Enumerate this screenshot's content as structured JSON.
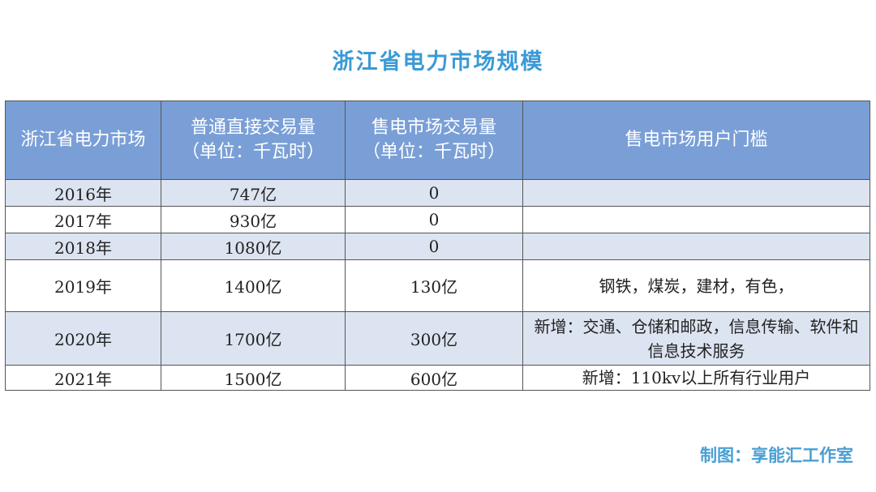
{
  "title": "浙江省电力市场规模",
  "table": {
    "headers": [
      {
        "line1": "浙江省电力市场",
        "line2": ""
      },
      {
        "line1": "普通直接交易量",
        "line2": "（单位：千瓦时）"
      },
      {
        "line1": "售电市场交易量",
        "line2": "（单位：千瓦时）"
      },
      {
        "line1": "售电市场用户门槛",
        "line2": ""
      }
    ],
    "rows": [
      [
        "2016年",
        "747亿",
        "0",
        ""
      ],
      [
        "2017年",
        "930亿",
        "0",
        ""
      ],
      [
        "2018年",
        "1080亿",
        "0",
        ""
      ],
      [
        "2019年",
        "1400亿",
        "130亿",
        "钢铁，煤炭，建材，有色，"
      ],
      [
        "2020年",
        "1700亿",
        "300亿",
        "新增：交通、仓储和邮政，信息传输、软件和信息技术服务"
      ],
      [
        "2021年",
        "1500亿",
        "600亿",
        "新增：110kv以上所有行业用户"
      ]
    ]
  },
  "footer": "制图：享能汇工作室",
  "colors": {
    "header_bg": "#7a9fd6",
    "alt_row": "#dce4f1",
    "title": "#3a9ad6"
  }
}
